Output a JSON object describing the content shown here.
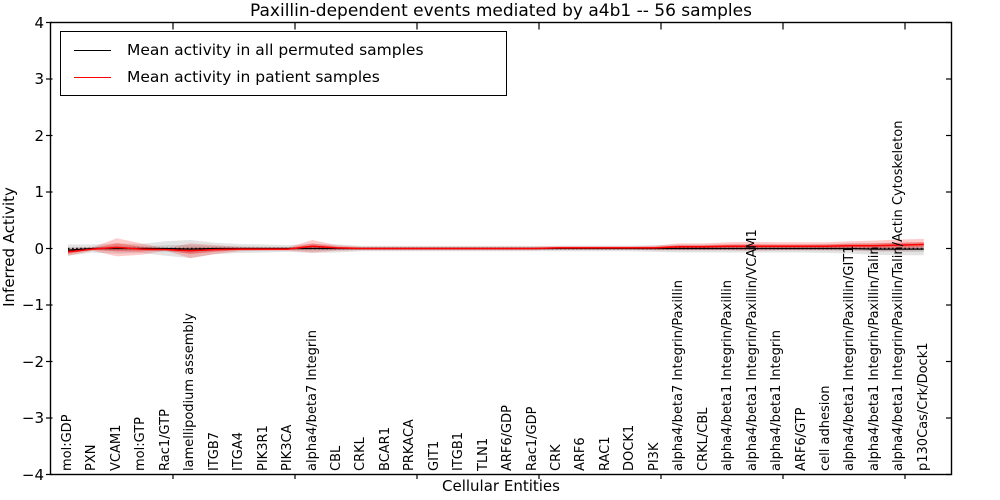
{
  "figure": {
    "title": "Paxillin-dependent events mediated by a4b1 -- 56 samples"
  },
  "axes": {
    "xlabel": "Cellular Entities",
    "ylabel": "Inferred Activity",
    "yticks": [
      4,
      3,
      2,
      1,
      0,
      -1,
      -2,
      -3,
      -4
    ],
    "ylim": [
      -4,
      4
    ]
  },
  "legend": {
    "items": [
      {
        "label": "Mean activity in all permuted samples",
        "color": "#000000"
      },
      {
        "label": "Mean activity in patient samples",
        "color": "#ff0000"
      }
    ]
  },
  "chart_data": {
    "type": "line",
    "title": "Paxillin-dependent events mediated by a4b1 -- 56 samples",
    "xlabel": "Cellular Entities",
    "ylabel": "Inferred Activity",
    "ylim": [
      -4,
      4
    ],
    "yticks": [
      4,
      3,
      2,
      1,
      0,
      -1,
      -2,
      -3,
      -4
    ],
    "grid": false,
    "legend_position": "upper left",
    "zero_reference_line": "black dotted",
    "categories": [
      "mol:GDP",
      "PXN",
      "VCAM1",
      "mol:GTP",
      "Rac1/GTP",
      "lamellipodium assembly",
      "ITGB7",
      "ITGA4",
      "PIK3R1",
      "PIK3CA",
      "alpha4/beta7 Integrin",
      "CBL",
      "CRKL",
      "BCAR1",
      "PRKACA",
      "GIT1",
      "ITGB1",
      "TLN1",
      "ARF6/GDP",
      "Rac1/GDP",
      "CRK",
      "ARF6",
      "RAC1",
      "DOCK1",
      "PI3K",
      "alpha4/beta7 Integrin/Paxillin",
      "CRKL/CBL",
      "alpha4/beta1 Integrin/Paxillin",
      "alpha4/beta1 Integrin/Paxillin/VCAM1",
      "alpha4/beta1 Integrin",
      "ARF6/GTP",
      "cell adhesion",
      "alpha4/beta1 Integrin/Paxillin/GIT1",
      "alpha4/beta1 Integrin/Paxillin/Talin",
      "alpha4/beta1 Integrin/Paxillin/Talin/Actin Cytoskeleton",
      "p130Cas/Crk/Dock1"
    ],
    "series": [
      {
        "name": "Mean activity in all permuted samples",
        "color": "#000000",
        "values": [
          -0.03,
          0,
          0,
          0,
          0,
          -0.01,
          0,
          0,
          0,
          0,
          0,
          0,
          0,
          0,
          0,
          0,
          0,
          0,
          0,
          0,
          0,
          0,
          0,
          0,
          0,
          0,
          0,
          0,
          0,
          0,
          0,
          0,
          0,
          -0.01,
          -0.01,
          -0.01
        ],
        "std_band": [
          0.1,
          0.07,
          0.09,
          0.08,
          0.13,
          0.16,
          0.1,
          0.08,
          0.07,
          0.06,
          0.08,
          0.07,
          0.05,
          0.05,
          0.05,
          0.05,
          0.05,
          0.05,
          0.05,
          0.05,
          0.05,
          0.05,
          0.05,
          0.05,
          0.06,
          0.07,
          0.07,
          0.07,
          0.07,
          0.07,
          0.07,
          0.08,
          0.09,
          0.1,
          0.11,
          0.11
        ],
        "band_color": "#7f7f7f"
      },
      {
        "name": "Mean activity in patient samples",
        "color": "#ff0000",
        "values": [
          -0.06,
          -0.01,
          0.02,
          -0.01,
          -0.02,
          -0.04,
          -0.02,
          -0.01,
          -0.01,
          -0.01,
          0.04,
          0.01,
          0,
          0,
          0,
          0,
          0,
          0,
          0,
          0,
          0.01,
          0.01,
          0.01,
          0.01,
          0.01,
          0.03,
          0.03,
          0.04,
          0.04,
          0.04,
          0.04,
          0.04,
          0.05,
          0.05,
          0.06,
          0.07
        ],
        "std_band": [
          0.07,
          0.03,
          0.16,
          0.1,
          0.02,
          0.13,
          0.08,
          0.04,
          0.03,
          0.03,
          0.11,
          0.05,
          0.03,
          0.03,
          0.03,
          0.03,
          0.03,
          0.03,
          0.03,
          0.03,
          0.03,
          0.03,
          0.03,
          0.03,
          0.04,
          0.06,
          0.06,
          0.07,
          0.08,
          0.07,
          0.07,
          0.07,
          0.08,
          0.09,
          0.1,
          0.1
        ],
        "band_color": "#ff0000"
      }
    ]
  }
}
